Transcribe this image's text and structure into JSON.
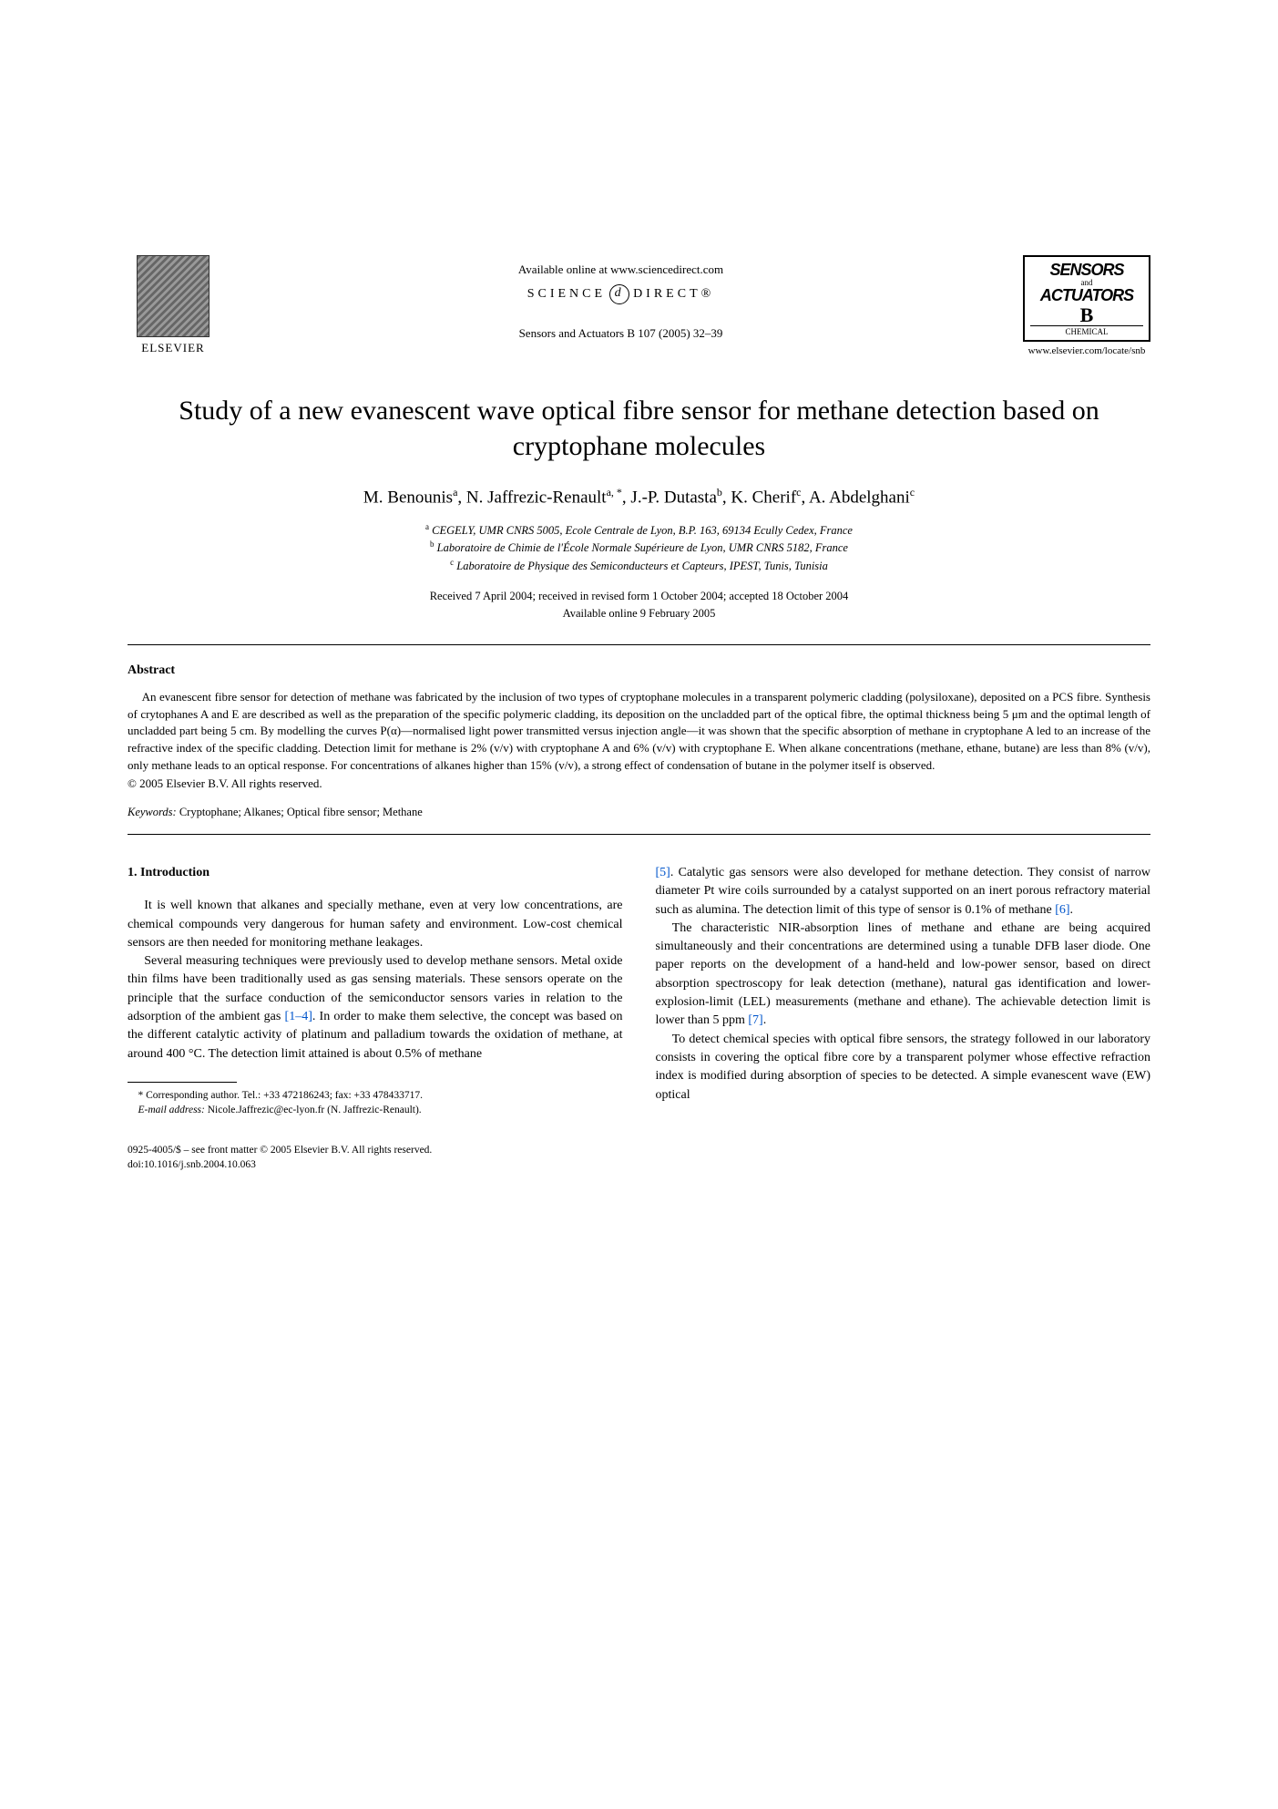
{
  "header": {
    "elsevier": "ELSEVIER",
    "available_online": "Available online at www.sciencedirect.com",
    "science_direct_left": "SCIENCE",
    "science_direct_right": "DIRECT®",
    "journal_ref": "Sensors and Actuators B 107 (2005) 32–39",
    "journal_logo": {
      "line1": "SENSORS",
      "and": "and",
      "line2": "ACTUATORS",
      "b": "B",
      "chem": "CHEMICAL"
    },
    "journal_url": "www.elsevier.com/locate/snb"
  },
  "title": "Study of a new evanescent wave optical fibre sensor for methane detection based on cryptophane molecules",
  "authors_html": "M. Benounis<sup>a</sup>, N. Jaffrezic-Renault<sup>a, *</sup>, J.-P. Dutasta<sup>b</sup>, K. Cherif<sup>c</sup>, A. Abdelghani<sup>c</sup>",
  "affiliations": [
    {
      "sup": "a",
      "text": "CEGELY, UMR CNRS 5005, Ecole Centrale de Lyon, B.P. 163, 69134 Ecully Cedex, France"
    },
    {
      "sup": "b",
      "text": "Laboratoire de Chimie de l'École Normale Supérieure de Lyon, UMR CNRS 5182, France"
    },
    {
      "sup": "c",
      "text": "Laboratoire de Physique des Semiconducteurs et Capteurs, IPEST, Tunis, Tunisia"
    }
  ],
  "dates": {
    "received": "Received 7 April 2004; received in revised form 1 October 2004; accepted 18 October 2004",
    "online": "Available online 9 February 2005"
  },
  "abstract": {
    "heading": "Abstract",
    "body": "An evanescent fibre sensor for detection of methane was fabricated by the inclusion of two types of cryptophane molecules in a transparent polymeric cladding (polysiloxane), deposited on a PCS fibre. Synthesis of crytophanes A and E are described as well as the preparation of the specific polymeric cladding, its deposition on the uncladded part of the optical fibre, the optimal thickness being 5 μm and the optimal length of uncladded part being 5 cm. By modelling the curves P(α)—normalised light power transmitted versus injection angle—it was shown that the specific absorption of methane in cryptophane A led to an increase of the refractive index of the specific cladding. Detection limit for methane is 2% (v/v) with cryptophane A and 6% (v/v) with cryptophane E. When alkane concentrations (methane, ethane, butane) are less than 8% (v/v), only methane leads to an optical response. For concentrations of alkanes higher than 15% (v/v), a strong effect of condensation of butane in the polymer itself is observed.",
    "copyright": "© 2005 Elsevier B.V. All rights reserved."
  },
  "keywords": {
    "label": "Keywords:",
    "text": " Cryptophane; Alkanes; Optical fibre sensor; Methane"
  },
  "body": {
    "section_heading": "1. Introduction",
    "left": {
      "p1": "It is well known that alkanes and specially methane, even at very low concentrations, are chemical compounds very dangerous for human safety and environment. Low-cost chemical sensors are then needed for monitoring methane leakages.",
      "p2_a": "Several measuring techniques were previously used to develop methane sensors. Metal oxide thin films have been traditionally used as gas sensing materials. These sensors operate on the principle that the surface conduction of the semiconductor sensors varies in relation to the adsorption of the ambient gas ",
      "p2_ref": "[1–4]",
      "p2_b": ". In order to make them selective, the concept was based on the different catalytic activity of platinum and palladium towards the oxidation of methane, at around 400 °C. The detection limit attained is about 0.5% of methane"
    },
    "right": {
      "p1_ref1": "[5]",
      "p1_a": ". Catalytic gas sensors were also developed for methane detection. They consist of narrow diameter Pt wire coils surrounded by a catalyst supported on an inert porous refractory material such as alumina. The detection limit of this type of sensor is 0.1% of methane ",
      "p1_ref2": "[6]",
      "p1_b": ".",
      "p2_a": "The characteristic NIR-absorption lines of methane and ethane are being acquired simultaneously and their concentrations are determined using a tunable DFB laser diode. One paper reports on the development of a hand-held and low-power sensor, based on direct absorption spectroscopy for leak detection (methane), natural gas identification and lower-explosion-limit (LEL) measurements (methane and ethane). The achievable detection limit is lower than 5 ppm ",
      "p2_ref": "[7]",
      "p2_b": ".",
      "p3": "To detect chemical species with optical fibre sensors, the strategy followed in our laboratory consists in covering the optical fibre core by a transparent polymer whose effective refraction index is modified during absorption of species to be detected. A simple evanescent wave (EW) optical"
    }
  },
  "footnote": {
    "corr": "* Corresponding author. Tel.: +33 472186243; fax: +33 478433717.",
    "email_label": "E-mail address:",
    "email": " Nicole.Jaffrezic@ec-lyon.fr (N. Jaffrezic-Renault)."
  },
  "bottom": {
    "line1": "0925-4005/$ – see front matter © 2005 Elsevier B.V. All rights reserved.",
    "line2": "doi:10.1016/j.snb.2004.10.063"
  }
}
